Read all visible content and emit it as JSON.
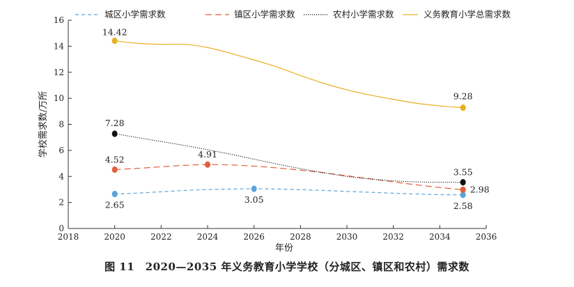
{
  "chart_data": {
    "type": "line",
    "title": "",
    "caption": "图 11　2020—2035 年义务教育小学学校（分城区、镇区和农村）需求数",
    "xlabel": "年份",
    "ylabel": "学校需求数/万所",
    "xlim": [
      2018,
      2036
    ],
    "ylim": [
      0,
      16
    ],
    "x_ticks": [
      "2018",
      "2020",
      "2022",
      "2024",
      "2026",
      "2028",
      "2030",
      "2032",
      "2034",
      "2036"
    ],
    "y_ticks": [
      "0",
      "2",
      "4",
      "6",
      "8",
      "10",
      "12",
      "14",
      "16"
    ],
    "grid": false,
    "legend_position": "top",
    "series": [
      {
        "name": "城区小学需求数",
        "color": "#5ba3d9",
        "dash": "dashed",
        "x": [
          2020,
          2021,
          2022,
          2023,
          2024,
          2025,
          2026,
          2027,
          2028,
          2029,
          2030,
          2031,
          2032,
          2033,
          2034,
          2035
        ],
        "values": [
          2.65,
          2.72,
          2.82,
          2.92,
          2.99,
          3.03,
          3.05,
          3.03,
          2.98,
          2.92,
          2.85,
          2.78,
          2.71,
          2.65,
          2.6,
          2.58
        ],
        "markers": [
          {
            "x": 2020,
            "y": 2.65,
            "label": "2.65"
          },
          {
            "x": 2026,
            "y": 3.05,
            "label": "3.05"
          },
          {
            "x": 2035,
            "y": 2.58,
            "label": "2.58"
          }
        ]
      },
      {
        "name": "镇区小学需求数",
        "color": "#e0603a",
        "dash": "longdash",
        "x": [
          2020,
          2021,
          2022,
          2023,
          2024,
          2025,
          2026,
          2027,
          2028,
          2029,
          2030,
          2031,
          2032,
          2033,
          2034,
          2035
        ],
        "values": [
          4.52,
          4.62,
          4.74,
          4.85,
          4.91,
          4.88,
          4.79,
          4.65,
          4.48,
          4.28,
          4.05,
          3.82,
          3.58,
          3.35,
          3.15,
          2.98
        ],
        "markers": [
          {
            "x": 2020,
            "y": 4.52,
            "label": "4.52"
          },
          {
            "x": 2024,
            "y": 4.91,
            "label": "4.91"
          },
          {
            "x": 2035,
            "y": 2.98,
            "label": "2.98"
          }
        ]
      },
      {
        "name": "农村小学需求数",
        "color": "#111111",
        "dash": "dotted",
        "x": [
          2020,
          2021,
          2022,
          2023,
          2024,
          2025,
          2026,
          2027,
          2028,
          2029,
          2030,
          2031,
          2032,
          2033,
          2034,
          2035
        ],
        "values": [
          7.28,
          6.98,
          6.68,
          6.38,
          6.05,
          5.7,
          5.32,
          4.95,
          4.6,
          4.28,
          4.0,
          3.8,
          3.66,
          3.58,
          3.55,
          3.55
        ],
        "markers": [
          {
            "x": 2020,
            "y": 7.28,
            "label": "7.28"
          },
          {
            "x": 2035,
            "y": 3.55,
            "label": "3.55"
          }
        ]
      },
      {
        "name": "义务教育小学总需求数",
        "color": "#e8b020",
        "dash": "solid",
        "x": [
          2020,
          2021,
          2022,
          2023,
          2024,
          2025,
          2026,
          2027,
          2028,
          2029,
          2030,
          2031,
          2032,
          2033,
          2034,
          2035
        ],
        "values": [
          14.42,
          14.22,
          14.15,
          14.15,
          13.9,
          13.45,
          12.95,
          12.4,
          11.75,
          11.15,
          10.65,
          10.25,
          9.92,
          9.62,
          9.42,
          9.28
        ],
        "markers": [
          {
            "x": 2020,
            "y": 14.42,
            "label": "14.42"
          },
          {
            "x": 2035,
            "y": 9.28,
            "label": "9.28"
          }
        ]
      }
    ]
  }
}
